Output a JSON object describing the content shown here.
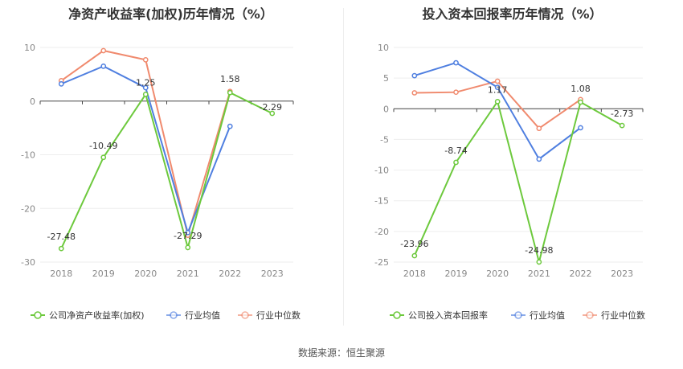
{
  "source_label": "数据来源：恒生聚源",
  "colors": {
    "company": "#6dc93d",
    "avg": "#4f7fe0",
    "median": "#f08a6e",
    "axis": "#444444",
    "grid": "#eeeeee",
    "tick": "#888888"
  },
  "chart_data": [
    {
      "type": "line",
      "title": "净资产收益率(加权)历年情况（%）",
      "categories": [
        "2018",
        "2019",
        "2020",
        "2021",
        "2022",
        "2023"
      ],
      "ylim": [
        -30,
        10
      ],
      "yticks": [
        10,
        0,
        -10,
        -20,
        -30
      ],
      "series": [
        {
          "name": "公司净资产收益率(加权)",
          "key": "company",
          "values": [
            -27.48,
            -10.49,
            1.25,
            -27.29,
            1.58,
            -2.29
          ],
          "labels": [
            "-27.48",
            "-10.49",
            "1.25",
            "-27.29",
            "1.58",
            "-2.29"
          ]
        },
        {
          "name": "行业均值",
          "key": "avg",
          "values": [
            3.2,
            6.5,
            2.5,
            -24.5,
            -4.7,
            null
          ]
        },
        {
          "name": "行业中位数",
          "key": "median",
          "values": [
            3.8,
            9.4,
            7.7,
            -25.0,
            1.8,
            null
          ]
        }
      ]
    },
    {
      "type": "line",
      "title": "投入资本回报率历年情况（%）",
      "categories": [
        "2018",
        "2019",
        "2020",
        "2021",
        "2022",
        "2023"
      ],
      "ylim": [
        -25,
        10
      ],
      "yticks": [
        10,
        5,
        0,
        -5,
        -10,
        -15,
        -20,
        -25
      ],
      "series": [
        {
          "name": "公司投入资本回报率",
          "key": "company",
          "values": [
            -23.96,
            -8.74,
            1.17,
            -24.98,
            1.08,
            -2.73
          ],
          "labels": [
            "-23.96",
            "-8.74",
            "1.17",
            "-24.98",
            "1.08",
            "-2.73"
          ]
        },
        {
          "name": "行业均值",
          "key": "avg",
          "values": [
            5.4,
            7.5,
            3.5,
            -8.2,
            -3.1,
            null
          ]
        },
        {
          "name": "行业中位数",
          "key": "median",
          "values": [
            2.6,
            2.7,
            4.5,
            -3.2,
            1.5,
            null
          ]
        }
      ]
    }
  ]
}
